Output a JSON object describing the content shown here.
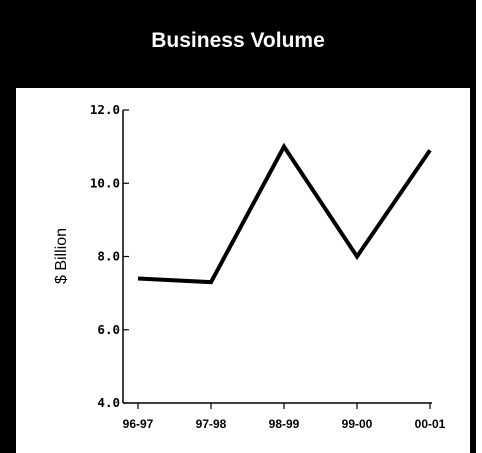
{
  "chart_data": {
    "type": "line",
    "title": "Business Volume",
    "ylabel": "$ Billion",
    "xlabel": "",
    "categories": [
      "96-97",
      "97-98",
      "98-99",
      "99-00",
      "00-01"
    ],
    "series": [
      {
        "values": [
          7.4,
          7.3,
          11.0,
          8.0,
          10.9
        ]
      }
    ],
    "ylim": [
      4.0,
      12.0
    ],
    "yticks": [
      "4.0",
      "6.0",
      "8.0",
      "10.0",
      "12.0"
    ],
    "grid": false,
    "colors": {
      "background": "#ffffff",
      "line": "#000000",
      "title_bar": "#000000",
      "title_text": "#ffffff"
    }
  }
}
